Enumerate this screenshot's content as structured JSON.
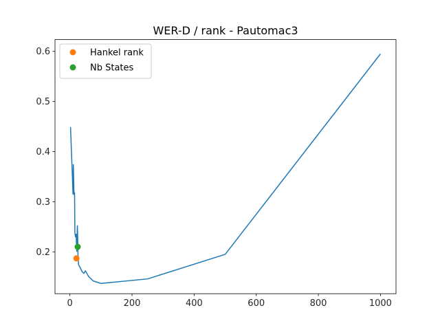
{
  "chart_data": {
    "type": "line",
    "title": "WER-D / rank - Pautomac3",
    "xlabel": "",
    "ylabel": "",
    "xlim": [
      -48,
      1050
    ],
    "ylim": [
      0.1165,
      0.6235
    ],
    "xticks": [
      0,
      200,
      400,
      600,
      800,
      1000
    ],
    "yticks": [
      0.2,
      0.3,
      0.4,
      0.5,
      0.6
    ],
    "xtick_labels": [
      "0",
      "200",
      "400",
      "600",
      "800",
      "1000"
    ],
    "ytick_labels": [
      "0.2",
      "0.3",
      "0.4",
      "0.5",
      "0.6"
    ],
    "grid": false,
    "legend_position": "top-left",
    "series": [
      {
        "color": "#1f77b4",
        "kind": "line",
        "x": [
          2,
          6,
          10,
          11,
          12,
          13,
          14,
          15,
          16,
          18,
          20,
          22,
          24,
          25,
          26,
          28,
          30,
          35,
          40,
          45,
          50,
          60,
          75,
          100,
          250,
          500,
          1000
        ],
        "y": [
          0.449,
          0.383,
          0.315,
          0.374,
          0.349,
          0.319,
          0.314,
          0.318,
          0.237,
          0.23,
          0.235,
          0.201,
          0.252,
          0.232,
          0.195,
          0.174,
          0.172,
          0.166,
          0.16,
          0.157,
          0.162,
          0.151,
          0.142,
          0.137,
          0.146,
          0.195,
          0.595
        ]
      },
      {
        "name": "Hankel rank",
        "color": "#ff7f0e",
        "kind": "marker",
        "x": [
          21
        ],
        "y": [
          0.187
        ]
      },
      {
        "name": "Nb States",
        "color": "#2ca02c",
        "kind": "marker",
        "x": [
          25
        ],
        "y": [
          0.21
        ]
      }
    ]
  }
}
